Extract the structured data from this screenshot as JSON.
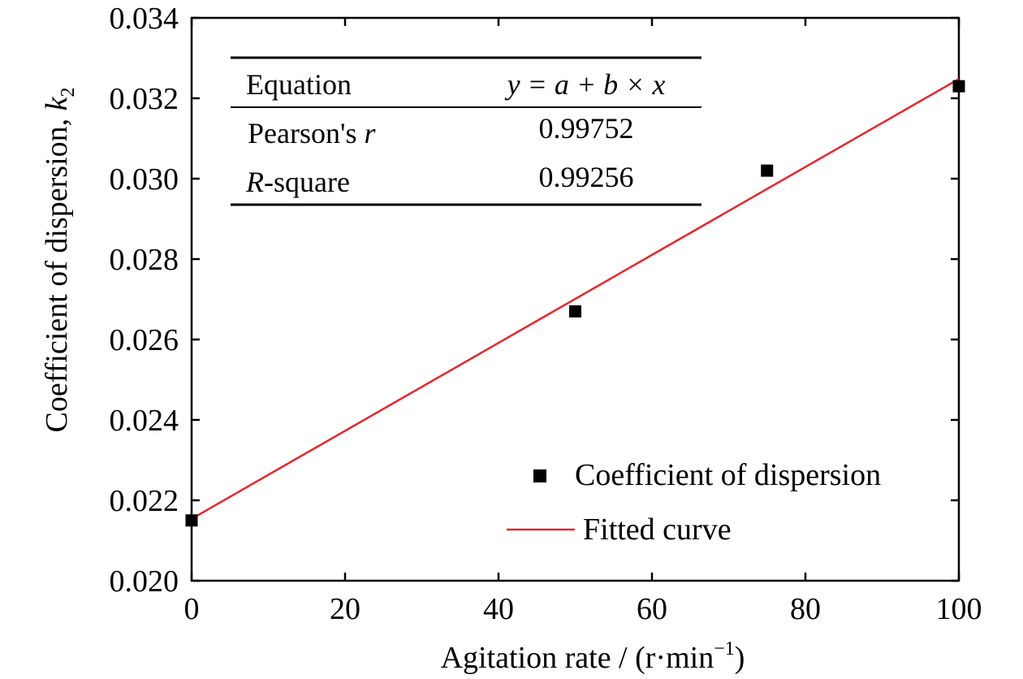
{
  "chart_data": {
    "type": "scatter",
    "title": "",
    "xlabel": "Agitation rate / (r·min",
    "xlabel_sup": "−1",
    "xlabel_close": ")",
    "ylabel": "Coefficient of dispersion,",
    "ylabel_var": "k",
    "ylabel_sub": "2",
    "xlim": [
      0,
      100
    ],
    "ylim": [
      0.02,
      0.034
    ],
    "xticks": [
      "0",
      "20",
      "40",
      "60",
      "80",
      "100"
    ],
    "yticks": [
      "0.020",
      "0.022",
      "0.024",
      "0.026",
      "0.028",
      "0.030",
      "0.032",
      "0.034"
    ],
    "grid": false,
    "legend_position": "bottom-right",
    "series": [
      {
        "name": "Coefficient of dispersion",
        "type": "scatter",
        "color": "#000000",
        "x": [
          0,
          50,
          75,
          100
        ],
        "y": [
          0.0215,
          0.0267,
          0.0302,
          0.0323
        ]
      },
      {
        "name": "Fitted curve",
        "type": "line",
        "color": "#e8262a",
        "x": [
          0,
          100
        ],
        "y": [
          0.02154,
          0.03248
        ]
      }
    ],
    "fit_table": {
      "rows": [
        {
          "label": "Equation",
          "value": "y = a + b × x"
        },
        {
          "label_pre": "Pearson's ",
          "label_var": "r",
          "label_post": "",
          "value": "0.99752"
        },
        {
          "label_pre": "",
          "label_var": "R",
          "label_post": "-square",
          "value": "0.99256"
        }
      ]
    }
  }
}
